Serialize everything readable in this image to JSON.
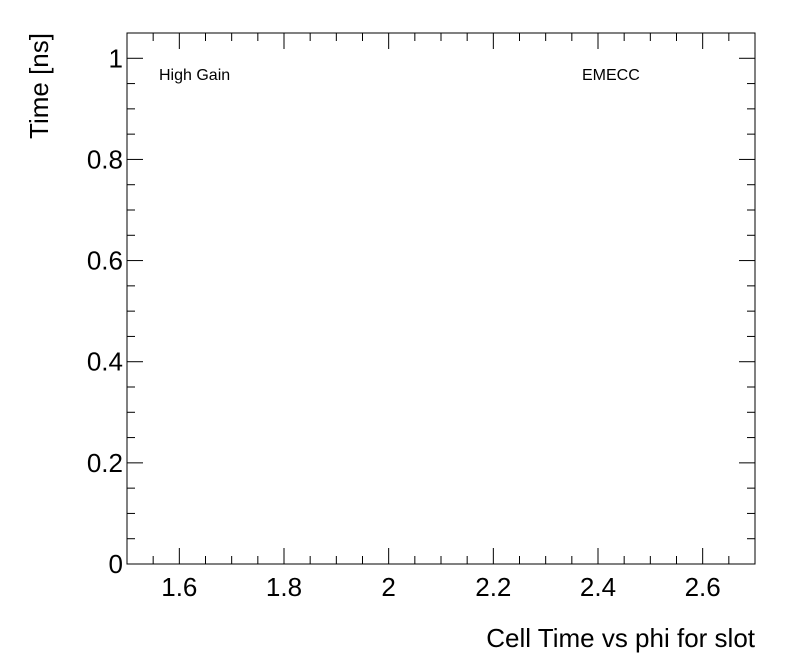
{
  "chart_data": {
    "type": "scatter",
    "xlabel": "Cell Time vs phi for slot",
    "ylabel": "Time [ns]",
    "annotations": [
      "High Gain",
      "EMECC"
    ],
    "xlim": [
      1.5,
      2.7
    ],
    "xticks": [
      1.6,
      1.8,
      2,
      2.2,
      2.4,
      2.6
    ],
    "ylim": [
      0,
      1.05
    ],
    "yticks": [
      0,
      0.2,
      0.4,
      0.6,
      0.8,
      1
    ]
  }
}
